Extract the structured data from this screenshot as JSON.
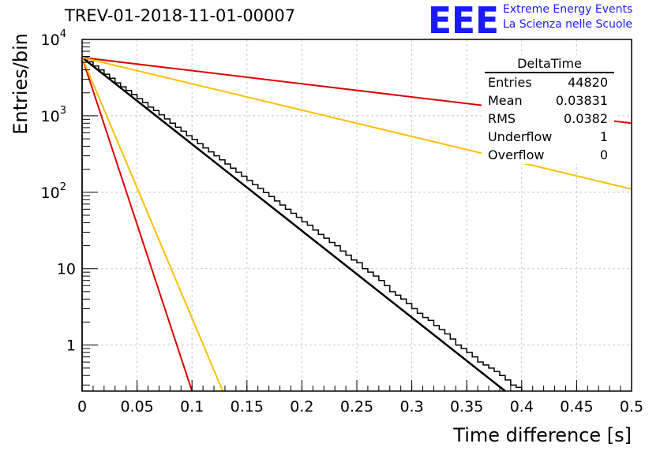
{
  "logo": {
    "letters": "EEE",
    "line1": "Extreme Energy Events",
    "line2": "La Scienza nelle Scuole",
    "color": "#1a1aff"
  },
  "title": "TREV-01-2018-11-01-00007",
  "stats_box": {
    "name": "DeltaTime",
    "rows": [
      {
        "label": "Entries",
        "value": "44820"
      },
      {
        "label": "Mean",
        "value": "0.03831"
      },
      {
        "label": "RMS",
        "value": "0.0382"
      },
      {
        "label": "Underflow",
        "value": "1"
      },
      {
        "label": "Overflow",
        "value": "0"
      }
    ]
  },
  "chart_data": {
    "type": "line",
    "title": "TREV-01-2018-11-01-00007",
    "xlabel": "Time difference [s]",
    "ylabel": "Entries/bin",
    "xlim": [
      0,
      0.5
    ],
    "ylim": [
      0.25,
      10000
    ],
    "y_scale": "log",
    "grid": true,
    "x_ticks": [
      "0",
      "0.05",
      "0.1",
      "0.15",
      "0.2",
      "0.25",
      "0.3",
      "0.35",
      "0.4",
      "0.45",
      "0.5"
    ],
    "y_ticks": [
      {
        "value": 1,
        "label": "1"
      },
      {
        "value": 10,
        "label": "10"
      },
      {
        "value": 100,
        "label": "10",
        "exp": "2"
      },
      {
        "value": 1000,
        "label": "10",
        "exp": "3"
      },
      {
        "value": 10000,
        "label": "10",
        "exp": "4"
      }
    ],
    "histogram": {
      "bin_width": 0.005,
      "color": "#000000",
      "counts": [
        5800,
        5100,
        4500,
        4000,
        3500,
        3100,
        2700,
        2400,
        2150,
        1900,
        1680,
        1490,
        1300,
        1170,
        1030,
        910,
        800,
        710,
        630,
        550,
        490,
        432,
        380,
        338,
        300,
        265,
        234,
        207,
        183,
        162,
        143,
        126,
        112,
        99,
        88,
        77,
        68,
        60,
        53,
        47,
        41,
        37,
        32,
        28,
        25,
        22,
        20,
        17,
        15,
        13,
        12,
        10,
        9,
        8,
        7,
        6,
        5,
        4.5,
        4,
        3.5,
        3,
        2.6,
        2.3,
        2.1,
        1.8,
        1.6,
        1.4,
        1.2,
        1,
        0.9,
        0.8,
        0.7,
        0.6,
        0.55,
        0.5,
        0.45,
        0.4,
        0.35,
        0.3,
        0.28
      ]
    },
    "series": [
      {
        "kind": "fit",
        "color": "#000000",
        "points": [
          [
            0,
            5800
          ],
          [
            0.385,
            0.25
          ]
        ]
      },
      {
        "kind": "band-upper",
        "color": "#dd0000",
        "points": [
          [
            0,
            5800
          ],
          [
            0.5,
            800
          ]
        ]
      },
      {
        "kind": "band-upper",
        "color": "#ffc000",
        "points": [
          [
            0,
            5800
          ],
          [
            0.5,
            110
          ]
        ]
      },
      {
        "kind": "band-lower",
        "color": "#dd0000",
        "points": [
          [
            0,
            5800
          ],
          [
            0.1,
            0.25
          ]
        ]
      },
      {
        "kind": "band-lower",
        "color": "#ffc000",
        "points": [
          [
            0,
            5800
          ],
          [
            0.128,
            0.25
          ]
        ]
      }
    ]
  }
}
